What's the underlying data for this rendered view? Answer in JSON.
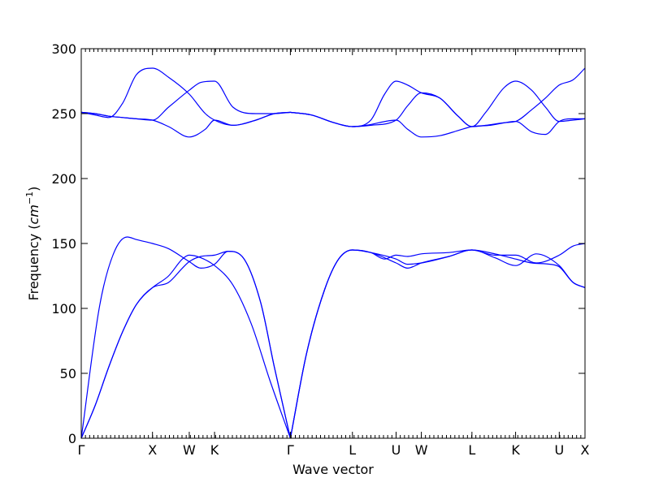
{
  "chart_data": {
    "type": "line",
    "title": "",
    "xlabel": "Wave vector",
    "ylabel_prefix": "Frequency ",
    "ylabel_math": "cm",
    "ylabel_sup": "−1",
    "ylim": [
      0,
      300
    ],
    "yticks": [
      0,
      50,
      100,
      150,
      200,
      250,
      300
    ],
    "xlim": [
      0,
      10.96
    ],
    "xticks": [
      {
        "x": 0.0,
        "label": "Γ"
      },
      {
        "x": 1.55,
        "label": "X"
      },
      {
        "x": 2.35,
        "label": "W"
      },
      {
        "x": 2.9,
        "label": "K"
      },
      {
        "x": 4.55,
        "label": "Γ"
      },
      {
        "x": 5.9,
        "label": "L"
      },
      {
        "x": 6.85,
        "label": "U"
      },
      {
        "x": 7.4,
        "label": "W"
      },
      {
        "x": 8.5,
        "label": "L"
      },
      {
        "x": 9.45,
        "label": "K"
      },
      {
        "x": 10.4,
        "label": "U"
      },
      {
        "x": 10.96,
        "label": "X"
      }
    ],
    "line_color": "#0000ff",
    "series": [
      {
        "x": [
          0,
          0.3,
          0.6,
          0.9,
          1.2,
          1.55,
          1.9,
          2.2,
          2.35,
          2.6,
          2.9,
          3.3,
          3.7,
          4.1,
          4.55
        ],
        "y": [
          0,
          25,
          55,
          82,
          103,
          116,
          125,
          138,
          141,
          139,
          133,
          118,
          88,
          45,
          0
        ]
      },
      {
        "x": [
          0,
          0.3,
          0.6,
          0.9,
          1.2,
          1.55,
          1.9,
          2.2,
          2.35,
          2.6,
          2.9,
          3.2,
          3.5,
          3.9,
          4.2,
          4.55
        ],
        "y": [
          0,
          25,
          55,
          82,
          103,
          116,
          120,
          131,
          136,
          140,
          141,
          144,
          140,
          105,
          55,
          0
        ]
      },
      {
        "x": [
          0,
          0.4,
          0.7,
          1.0,
          1.2,
          1.55,
          1.9,
          2.35,
          2.6,
          2.9,
          3.2,
          3.5,
          3.9,
          4.2,
          4.55
        ],
        "y": [
          0,
          102,
          142,
          155,
          153,
          150,
          146,
          136,
          131,
          134,
          144,
          140,
          105,
          55,
          0
        ]
      },
      {
        "x": [
          4.55,
          4.9,
          5.3,
          5.6,
          5.9,
          6.3,
          6.85,
          7.1,
          7.4,
          8.0,
          8.5,
          9.0,
          9.45,
          9.8,
          10.2,
          10.4,
          10.7,
          10.96
        ],
        "y": [
          0,
          65,
          115,
          138,
          145,
          143,
          138,
          134,
          135,
          140,
          145,
          142,
          138,
          135,
          134,
          132,
          120,
          116
        ]
      },
      {
        "x": [
          4.55,
          4.9,
          5.3,
          5.6,
          5.9,
          6.3,
          6.85,
          7.1,
          7.4,
          8.0,
          8.5,
          9.0,
          9.45,
          9.9,
          10.4,
          10.7,
          10.96
        ],
        "y": [
          0,
          65,
          115,
          138,
          145,
          143,
          135,
          131,
          135,
          140,
          145,
          139,
          133,
          142,
          133,
          120,
          116
        ]
      },
      {
        "x": [
          4.55,
          4.9,
          5.3,
          5.6,
          5.9,
          6.3,
          6.6,
          6.85,
          7.1,
          7.4,
          8.0,
          8.5,
          9.0,
          9.45,
          9.9,
          10.4,
          10.7,
          10.96
        ],
        "y": [
          0,
          65,
          115,
          138,
          145,
          143,
          138,
          141,
          140,
          142,
          143,
          145,
          141,
          141,
          135,
          141,
          148,
          150
        ]
      },
      {
        "x": [
          0,
          0.3,
          0.6,
          0.9,
          1.2,
          1.55,
          1.9,
          2.35,
          2.7,
          2.9,
          3.3,
          3.8,
          4.2,
          4.55
        ],
        "y": [
          251,
          250,
          248,
          247,
          246,
          245,
          240,
          232,
          238,
          245,
          241,
          245,
          250,
          251
        ]
      },
      {
        "x": [
          0,
          0.3,
          0.6,
          0.9,
          1.2,
          1.55,
          1.9,
          2.35,
          2.6,
          2.9,
          3.3,
          3.8,
          4.2,
          4.55
        ],
        "y": [
          251,
          250,
          248,
          247,
          246,
          245,
          255,
          268,
          274,
          275,
          255,
          250,
          250,
          251
        ]
      },
      {
        "x": [
          0,
          0.3,
          0.6,
          0.9,
          1.2,
          1.55,
          1.9,
          2.35,
          2.7,
          2.9,
          3.3,
          3.8,
          4.2,
          4.55
        ],
        "y": [
          251,
          249,
          247,
          258,
          280,
          285,
          278,
          265,
          250,
          245,
          241,
          245,
          250,
          251
        ]
      },
      {
        "x": [
          4.55,
          5.0,
          5.5,
          5.9,
          6.2,
          6.85,
          7.1,
          7.4,
          7.8,
          8.2,
          8.5,
          8.9,
          9.45,
          9.8,
          10.1,
          10.4,
          10.7,
          10.96
        ],
        "y": [
          251,
          249,
          243,
          240,
          241,
          245,
          238,
          232,
          233,
          237,
          240,
          241,
          244,
          236,
          234,
          244,
          246,
          246
        ]
      },
      {
        "x": [
          4.55,
          5.0,
          5.5,
          5.9,
          6.3,
          6.85,
          7.1,
          7.4,
          7.8,
          8.2,
          8.5,
          8.8,
          9.2,
          9.45,
          9.8,
          10.1,
          10.4,
          10.7,
          10.96
        ],
        "y": [
          251,
          249,
          243,
          240,
          241,
          245,
          256,
          266,
          262,
          248,
          240,
          241,
          243,
          244,
          253,
          262,
          272,
          276,
          285
        ]
      },
      {
        "x": [
          4.55,
          5.0,
          5.5,
          5.9,
          6.3,
          6.6,
          6.85,
          7.1,
          7.4,
          7.8,
          8.2,
          8.5,
          8.8,
          9.2,
          9.45,
          9.8,
          10.1,
          10.4,
          10.7,
          10.96
        ],
        "y": [
          251,
          249,
          243,
          240,
          245,
          265,
          275,
          272,
          266,
          262,
          248,
          240,
          251,
          270,
          275,
          268,
          255,
          244,
          245,
          246
        ]
      }
    ]
  }
}
